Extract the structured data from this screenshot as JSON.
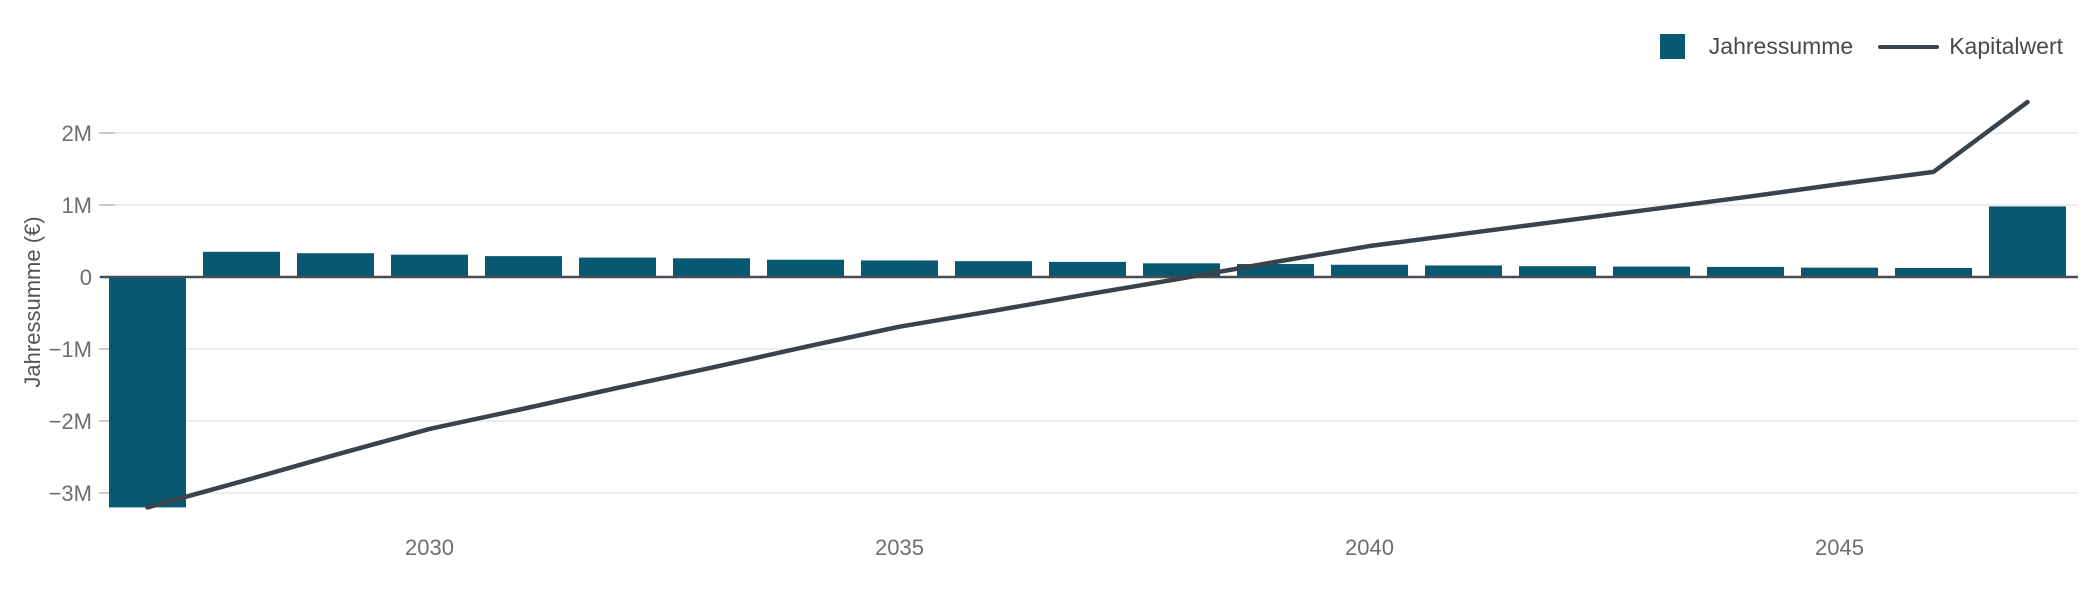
{
  "legend": {
    "items": [
      {
        "label": "Jahressumme",
        "type": "bar",
        "color": "#075870"
      },
      {
        "label": "Kapitalwert",
        "type": "line",
        "color": "#3a424a"
      }
    ]
  },
  "chart_data": {
    "type": "bar",
    "title": "",
    "xlabel": "",
    "ylabel": "Jahressumme (€)",
    "x": [
      2027,
      2028,
      2029,
      2030,
      2031,
      2032,
      2033,
      2034,
      2035,
      2036,
      2037,
      2038,
      2039,
      2040,
      2041,
      2042,
      2043,
      2044,
      2045,
      2046,
      2047
    ],
    "series": [
      {
        "name": "Jahressumme",
        "type": "bar",
        "color": "#075870",
        "values": [
          -3200000,
          350000,
          330000,
          310000,
          290000,
          270000,
          260000,
          240000,
          230000,
          220000,
          210000,
          190000,
          180000,
          170000,
          160000,
          150000,
          145000,
          140000,
          130000,
          125000,
          980000
        ]
      },
      {
        "name": "Kapitalwert",
        "type": "line",
        "color": "#3a424a",
        "values": [
          -3200000,
          -2840000,
          -2470000,
          -2110000,
          -1830000,
          -1540000,
          -1260000,
          -970000,
          -690000,
          -470000,
          -240000,
          -20000,
          210000,
          430000,
          600000,
          770000,
          940000,
          1110000,
          1290000,
          1460000,
          2430000
        ]
      }
    ],
    "yticks": [
      {
        "value": 2000000,
        "label": "2M"
      },
      {
        "value": 1000000,
        "label": "1M"
      },
      {
        "value": 0,
        "label": "0"
      },
      {
        "value": -1000000,
        "label": "−1M"
      },
      {
        "value": -2000000,
        "label": "−2M"
      },
      {
        "value": -3000000,
        "label": "−3M"
      }
    ],
    "xticks": [
      "2030",
      "2035",
      "2040",
      "2045"
    ],
    "ylim": [
      -3600000,
      2600000
    ],
    "grid": true,
    "legend_position": "top-right",
    "colors": {
      "grid": "#ededed",
      "tick": "#cccccc",
      "zero_line": "#474d54",
      "tick_label": "#6e6e6e",
      "axis_title": "#555555"
    }
  }
}
